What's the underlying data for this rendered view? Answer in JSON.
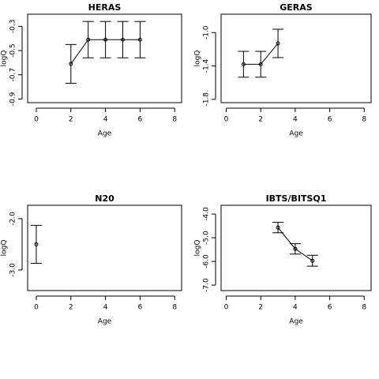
{
  "chart_data": [
    {
      "type": "errorbar",
      "title": "HERAS",
      "x_label": "Age",
      "y_label": "logQ",
      "color": "#000000",
      "x": [
        2,
        3,
        4,
        5,
        6
      ],
      "values": [
        -0.61,
        -0.41,
        -0.41,
        -0.41,
        -0.41
      ],
      "errors": [
        0.16,
        0.15,
        0.15,
        0.15,
        0.15
      ],
      "xlim": [
        -0.5,
        8.4
      ],
      "ylim": [
        -0.93,
        -0.2
      ],
      "xticks": [
        0,
        2,
        4,
        6,
        8
      ],
      "yticks": [
        -0.3,
        -0.5,
        -0.7,
        -0.9
      ]
    },
    {
      "type": "errorbar",
      "title": "GERAS",
      "x_label": "Age",
      "y_label": "logQ",
      "color": "#000000",
      "x": [
        1,
        2,
        3
      ],
      "values": [
        -1.38,
        -1.38,
        -1.13
      ],
      "errors": [
        0.155,
        0.155,
        0.17
      ],
      "xlim": [
        -0.3,
        8.4
      ],
      "ylim": [
        -1.84,
        -0.78
      ],
      "xticks": [
        0,
        2,
        4,
        6,
        8
      ],
      "yticks": [
        {
          "value": -1,
          "label": "-1.0"
        },
        -1.4,
        -1.8
      ]
    },
    {
      "type": "errorbar",
      "title": "N20",
      "x_label": "Age",
      "y_label": "logQ",
      "color": "#000000",
      "x": [
        0
      ],
      "values": [
        -2.5
      ],
      "errors": [
        0.37
      ],
      "xlim": [
        -0.5,
        8.4
      ],
      "ylim": [
        -3.4,
        -1.74
      ],
      "xticks": [
        0,
        2,
        4,
        6,
        8
      ],
      "yticks": [
        {
          "value": -2,
          "label": "-2.0"
        },
        {
          "value": -3,
          "label": "-3.0"
        }
      ]
    },
    {
      "type": "errorbar",
      "title": "IBTS/BITSQ1",
      "x_label": "Age",
      "y_label": "logQ",
      "color": "#000000",
      "x": [
        3,
        4,
        5
      ],
      "values": [
        -4.57,
        -5.47,
        -5.97
      ],
      "errors": [
        0.22,
        0.22,
        0.23
      ],
      "xlim": [
        -0.3,
        8.4
      ],
      "ylim": [
        -7.23,
        -3.63
      ],
      "xticks": [
        0,
        2,
        4,
        6,
        8
      ],
      "yticks": [
        {
          "value": -4,
          "label": "-4.0"
        },
        {
          "value": -5,
          "label": "-5.0"
        },
        {
          "value": -6,
          "label": "-6.0"
        },
        {
          "value": -7,
          "label": "-7.0"
        }
      ]
    }
  ]
}
